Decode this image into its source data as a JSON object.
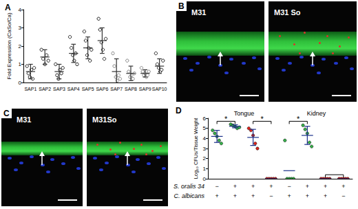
{
  "chart_data": [
    {
      "type": "scatter",
      "title": "A",
      "ylabel": "Fold Expression (CaSo/Ca)",
      "categories": [
        "SAP1",
        "SAP2",
        "SAP3",
        "SAP4",
        "SAP5",
        "SAP6",
        "SAP7",
        "SAP8",
        "SAP9",
        "SAP10"
      ],
      "values": [
        [
          0.9,
          0.5,
          0.3,
          0.7,
          0.2,
          0.8
        ],
        [
          1.8,
          1.3,
          1.0,
          1.5,
          1.2
        ],
        [
          1.0,
          0.4,
          0.2,
          0.7,
          0.5,
          0.8
        ],
        [
          2.5,
          1.9,
          1.5,
          1.2,
          1.6,
          1.0
        ],
        [
          2.8,
          2.3,
          1.5,
          1.9,
          1.2,
          1.8
        ],
        [
          3.5,
          2.9,
          2.2,
          1.8,
          1.3,
          2.4
        ],
        [
          1.6,
          0.9,
          0.3,
          0.1,
          0.4,
          0.2
        ],
        [
          1.2,
          0.6,
          0.3,
          0.4,
          0.2,
          0.5
        ],
        [
          0.8,
          0.6,
          0.4,
          0.5,
          0.3,
          0.4,
          0.6
        ],
        [
          1.6,
          1.0,
          0.8,
          0.6,
          0.7,
          1.2
        ]
      ],
      "mean": [
        0.6,
        1.4,
        0.6,
        1.6,
        1.9,
        2.3,
        0.6,
        0.5,
        0.5,
        0.9
      ],
      "sd": [
        0.4,
        0.4,
        0.4,
        0.5,
        0.6,
        0.7,
        0.7,
        0.4,
        0.2,
        0.4
      ],
      "colors": [
        "#222222",
        "#222222",
        "#222222",
        "#222222",
        "#222222",
        "#222222",
        "#888888",
        "#888888",
        "#888888",
        "#222222"
      ],
      "marker": "circle",
      "ylim": [
        0,
        4
      ],
      "yticks": [
        0,
        1,
        2,
        3,
        4
      ],
      "grid": false
    },
    {
      "type": "scatter",
      "title": "D",
      "ylabel": "Log₁₀ CFUs/Tissue Weight",
      "x_rows": [
        {
          "label": "S. oralis 34",
          "values": [
            "−",
            "+",
            "+",
            "+",
            "−",
            "+",
            "+",
            "+"
          ]
        },
        {
          "label": "C. albicans",
          "values": [
            "+",
            "+",
            "+",
            "−",
            "+",
            "+",
            "+",
            "−"
          ]
        }
      ],
      "groups": [
        {
          "text": "Tongue",
          "from": 0,
          "to": 3
        },
        {
          "text": "Kidney",
          "from": 4,
          "to": 7
        }
      ],
      "brackets": [
        {
          "text": "*",
          "from": 0,
          "to": 1,
          "y": 5.7
        },
        {
          "text": "*",
          "from": 2,
          "to": 3,
          "y": 5.7
        },
        {
          "text": "*",
          "from": 4,
          "to": 5,
          "y": 5.7
        },
        {
          "from": 6,
          "to": 7,
          "y": 0.4
        }
      ],
      "values": [
        [
          4.8,
          4.5,
          4.2,
          3.8,
          3.5
        ],
        [
          5.4,
          5.3,
          5.2,
          5.0,
          5.1
        ],
        [
          5.0,
          4.8,
          4.3,
          3.5,
          3.0
        ],
        [
          0,
          0,
          0,
          0,
          0
        ],
        [
          3.8,
          0,
          0,
          0,
          0
        ],
        [
          5.3,
          4.9,
          4.5,
          3.6,
          3.2
        ],
        [
          0,
          0,
          0,
          0,
          0
        ],
        [
          0,
          0,
          0,
          0,
          0
        ]
      ],
      "mean": [
        4.2,
        5.2,
        4.1,
        0,
        0.8,
        4.3,
        0,
        0
      ],
      "sd": [
        0.6,
        0.15,
        0.8,
        0,
        0,
        0.9,
        0,
        0
      ],
      "colors": [
        "#35b44a",
        "#35b44a",
        "#e0221b",
        "#e0221b",
        "#35b44a",
        "#35b44a",
        "#e0221b",
        "#e0221b"
      ],
      "marker": "circle",
      "ylim": [
        0,
        6
      ],
      "yticks": [
        0,
        1,
        2,
        3,
        4,
        5,
        6
      ],
      "grid": false
    }
  ],
  "images": [
    {
      "title": "B",
      "labels": [
        "M31",
        "M31 So"
      ]
    },
    {
      "title": "C",
      "labels": [
        "M31",
        "M31So"
      ]
    }
  ]
}
